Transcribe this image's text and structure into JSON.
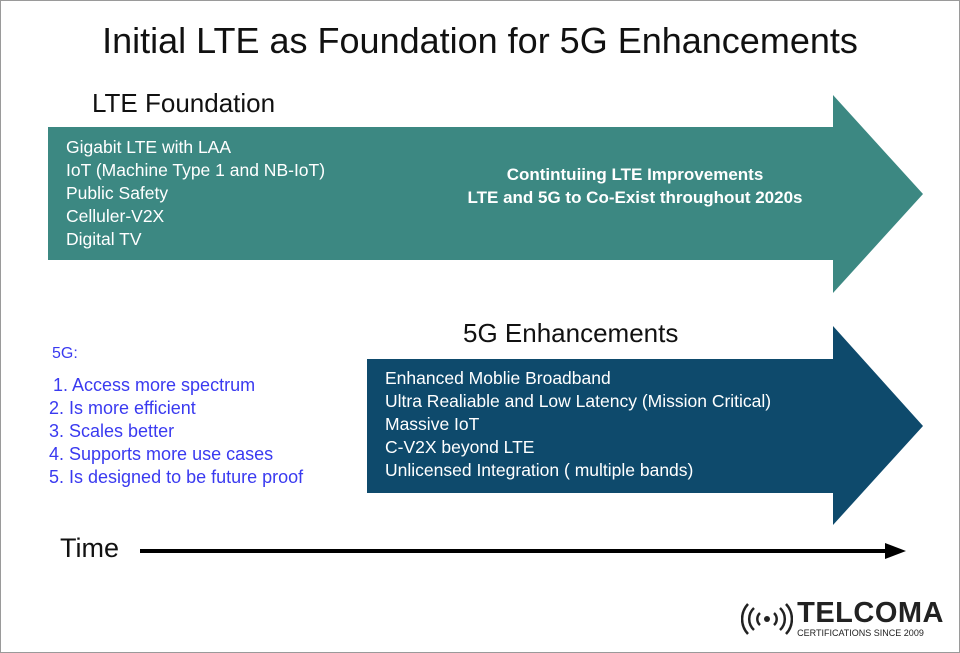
{
  "title": "Initial LTE as Foundation for 5G Enhancements",
  "lte": {
    "heading": "LTE Foundation",
    "items": [
      "Gigabit LTE with LAA",
      "IoT (Machine Type 1 and NB-IoT)",
      "Public Safety",
      "Celluler-V2X",
      "Digital TV"
    ],
    "center_lines": [
      "Contintuiing LTE Improvements",
      "LTE and 5G to Co-Exist throughout 2020s"
    ],
    "color": "#3c8882"
  },
  "enh": {
    "heading": "5G Enhancements",
    "items": [
      "Enhanced Moblie Broadband",
      "Ultra Realiable and Low Latency (Mission Critical)",
      "Massive IoT",
      "C-V2X beyond LTE",
      "Unlicensed Integration ( multiple bands)"
    ],
    "color": "#0e4a6c"
  },
  "fiveg": {
    "label": "5G:",
    "items": [
      "1. Access more spectrum",
      "2. Is more efficient",
      "3. Scales better",
      "4. Supports more use cases",
      "5. Is designed to be future proof"
    ],
    "color": "#3a3af0"
  },
  "time_label": "Time",
  "logo": {
    "name": "TELCOMA",
    "tagline": "CERTIFICATIONS SINCE 2009"
  }
}
